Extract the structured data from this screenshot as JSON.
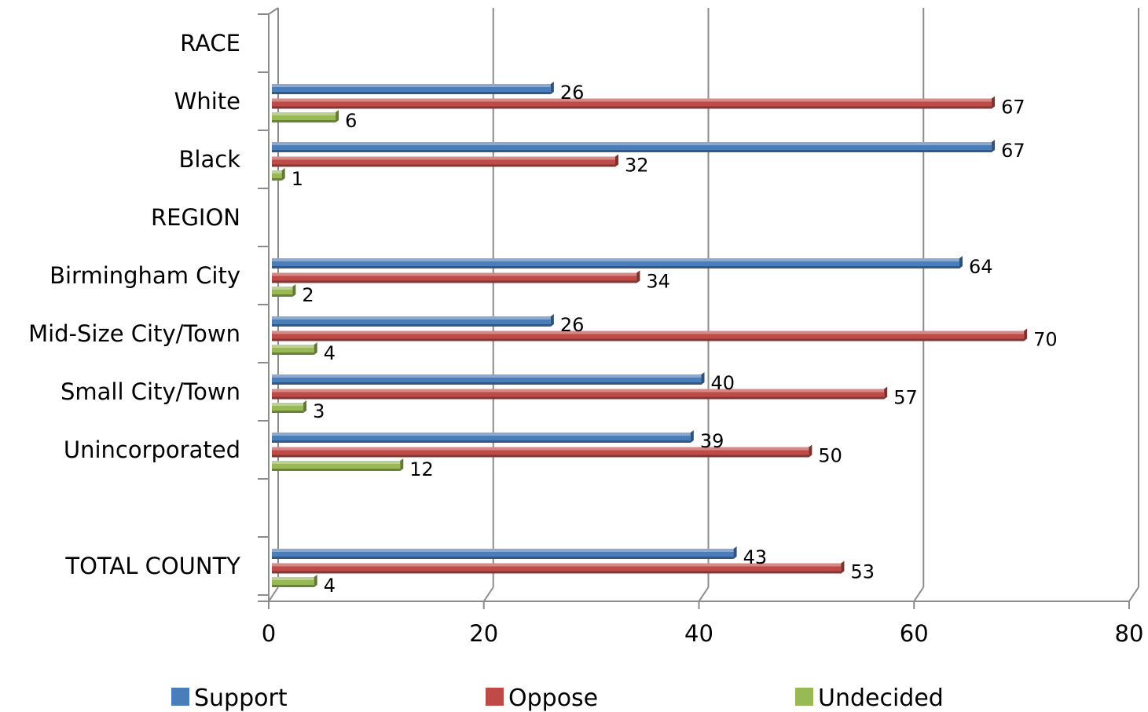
{
  "chart_data": {
    "type": "bar",
    "orientation": "horizontal",
    "style": "3d-clustered",
    "categories": [
      "RACE",
      "White",
      "Black",
      "REGION",
      "Birmingham City",
      "Mid-Size City/Town",
      "Small City/Town",
      "Unincorporated",
      "",
      "TOTAL COUNTY"
    ],
    "series": [
      {
        "name": "Support",
        "color": "#4a7ebb",
        "values": [
          null,
          26,
          67,
          null,
          64,
          26,
          40,
          39,
          null,
          43
        ]
      },
      {
        "name": "Oppose",
        "color": "#be4b48",
        "values": [
          null,
          67,
          32,
          null,
          34,
          70,
          57,
          50,
          null,
          53
        ]
      },
      {
        "name": "Undecided",
        "color": "#98b954",
        "values": [
          null,
          6,
          1,
          null,
          2,
          4,
          3,
          12,
          null,
          4
        ]
      }
    ],
    "xlim": [
      0,
      80
    ],
    "xticks": [
      "0",
      "20",
      "40",
      "60",
      "80"
    ],
    "grid": true,
    "data_labels": true,
    "legend_position": "bottom",
    "title": "",
    "xlabel": "",
    "ylabel": ""
  }
}
